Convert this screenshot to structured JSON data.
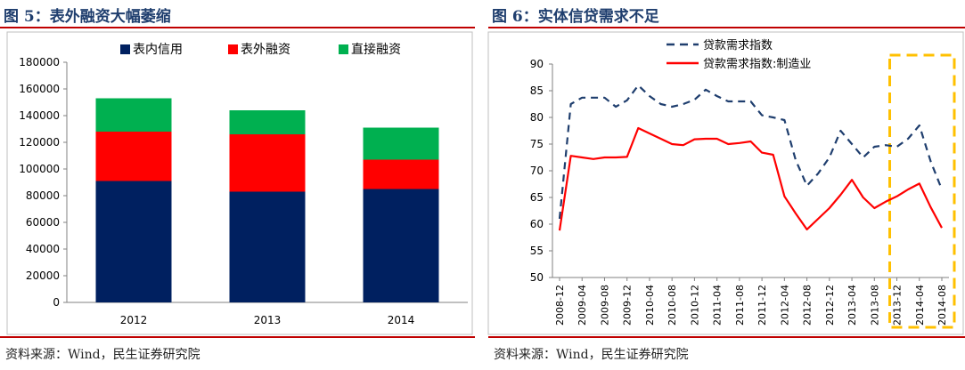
{
  "left": {
    "figure_title": "图 5：表外融资大幅萎缩",
    "source": "资料来源：Wind，民生证券研究院",
    "chart_data": {
      "type": "bar",
      "stacked": true,
      "categories": [
        "2012",
        "2013",
        "2014"
      ],
      "series": [
        {
          "name": "表内信用",
          "color": "#002060",
          "values": [
            91000,
            83000,
            85000
          ]
        },
        {
          "name": "表外融资",
          "color": "#FF0000",
          "values": [
            37000,
            43000,
            22000
          ]
        },
        {
          "name": "直接融资",
          "color": "#00B050",
          "values": [
            25000,
            18000,
            24000
          ]
        }
      ],
      "ylim": [
        0,
        180000
      ],
      "yticks": [
        "0",
        "20000",
        "40000",
        "60000",
        "80000",
        "100000",
        "120000",
        "140000",
        "160000",
        "180000"
      ],
      "legend_position": "top",
      "grid": false
    }
  },
  "right": {
    "figure_title": "图 6：实体信贷需求不足",
    "source": "资料来源：Wind，民生证券研究院",
    "chart_data": {
      "type": "line",
      "x": [
        "2008-12",
        "2009-02",
        "2009-04",
        "2009-06",
        "2009-08",
        "2009-10",
        "2009-12",
        "2010-02",
        "2010-04",
        "2010-06",
        "2010-08",
        "2010-10",
        "2010-12",
        "2011-02",
        "2011-04",
        "2011-06",
        "2011-08",
        "2011-10",
        "2011-12",
        "2012-02",
        "2012-04",
        "2012-06",
        "2012-08",
        "2012-10",
        "2012-12",
        "2013-02",
        "2013-04",
        "2013-06",
        "2013-08",
        "2013-10",
        "2013-12",
        "2014-02",
        "2014-04",
        "2014-06",
        "2014-08"
      ],
      "xticks": [
        "2008-12",
        "2009-04",
        "2009-08",
        "2009-12",
        "2010-04",
        "2010-08",
        "2010-12",
        "2011-04",
        "2011-08",
        "2011-12",
        "2012-04",
        "2012-08",
        "2012-12",
        "2013-04",
        "2013-08",
        "2013-12",
        "2014-04",
        "2014-08"
      ],
      "series": [
        {
          "name": "贷款需求指数",
          "color": "#1F3E6E",
          "style": "dashed",
          "values": [
            61,
            82.5,
            83.7,
            83.7,
            83.7,
            82,
            83.2,
            86,
            84,
            82.5,
            82,
            82.5,
            83.3,
            85.2,
            84,
            83,
            83,
            83,
            80.4,
            80,
            79.5,
            72,
            67.2,
            69.5,
            72.5,
            77.5,
            75,
            72.5,
            74.5,
            74.8,
            74.5,
            76,
            78.5,
            71.8,
            66.5
          ]
        },
        {
          "name": "贷款需求指数:制造业",
          "color": "#FF0000",
          "style": "solid",
          "values": [
            58.8,
            72.8,
            72.5,
            72.2,
            72.5,
            72.5,
            72.6,
            78,
            77,
            76,
            75,
            74.8,
            75.9,
            76,
            76,
            75,
            75.2,
            75.5,
            73.4,
            73,
            65.2,
            62,
            59,
            61,
            63,
            65.5,
            68.3,
            65,
            63,
            64.2,
            65.2,
            66.5,
            67.6,
            63.2,
            59.3
          ]
        }
      ],
      "ylim": [
        50,
        90
      ],
      "yticks": [
        "50",
        "55",
        "60",
        "65",
        "70",
        "75",
        "80",
        "85",
        "90"
      ],
      "legend_position": "top-left",
      "grid": false,
      "highlight": {
        "from": "2013-12",
        "to": "2014-08",
        "color": "#FFC000",
        "style": "dashed"
      }
    }
  }
}
